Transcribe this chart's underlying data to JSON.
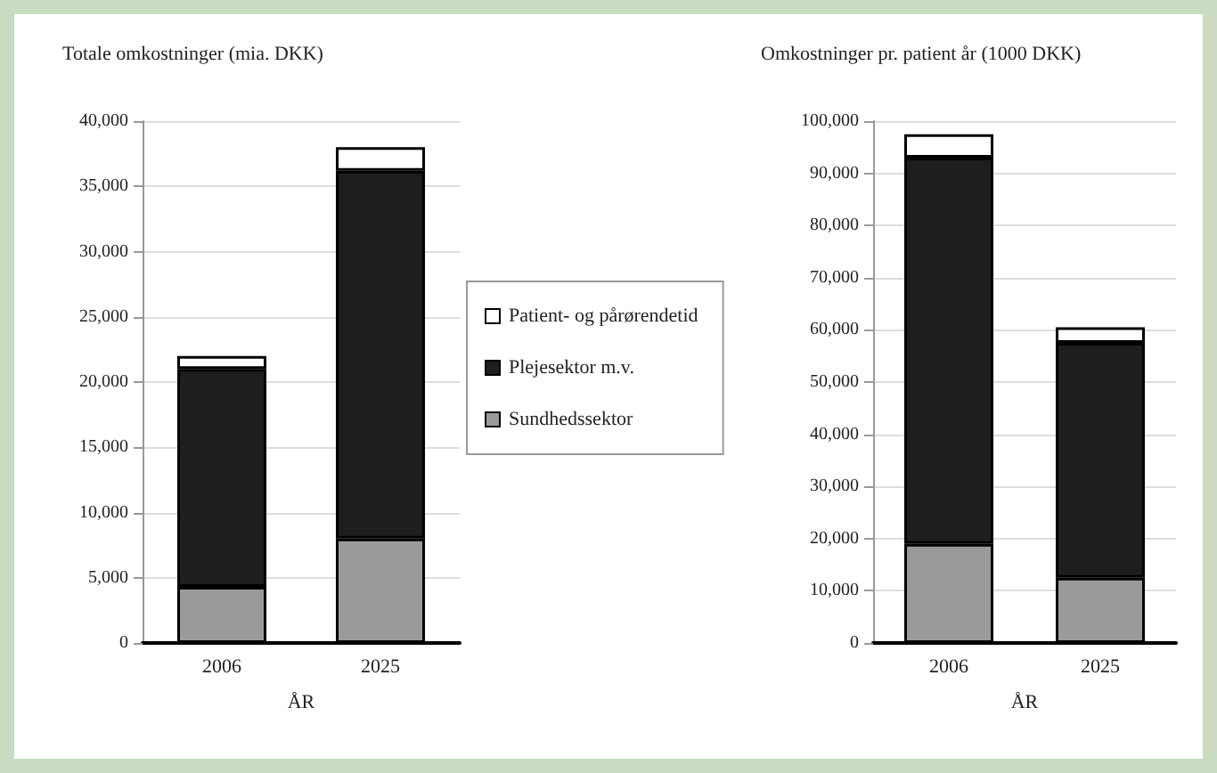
{
  "chart_data": [
    {
      "type": "bar",
      "title": "Totale omkostninger (mia. DKK)",
      "xlabel": "ÅR",
      "categories": [
        "2006",
        "2025"
      ],
      "stacked": true,
      "grid": "y",
      "legend": "right",
      "series": [
        {
          "name": "Sundhedssektor",
          "color": "#9a9a9a",
          "values": [
            4300,
            8000
          ]
        },
        {
          "name": "Plejesektor m.v.",
          "color": "#1e1e1e",
          "values": [
            16700,
            28200
          ]
        },
        {
          "name": "Patient- og pårørendetid",
          "color": "#ffffff",
          "values": [
            1000,
            1800
          ]
        }
      ],
      "ylim": [
        0,
        40000
      ],
      "yticks": [
        0,
        {
          "value": 5000,
          "label": "5,000"
        },
        {
          "value": 10000,
          "label": "10,000"
        },
        {
          "value": 15000,
          "label": "15,000"
        },
        {
          "value": 20000,
          "label": "20,000"
        },
        {
          "value": 25000,
          "label": "25,000"
        },
        {
          "value": 30000,
          "label": "30,000"
        },
        {
          "value": 35000,
          "label": "35,000"
        },
        {
          "value": 40000,
          "label": "40,000"
        }
      ]
    },
    {
      "type": "bar",
      "title": "Omkostninger pr. patient år (1000 DKK)",
      "xlabel": "ÅR",
      "categories": [
        "2006",
        "2025"
      ],
      "stacked": true,
      "grid": "y",
      "series": [
        {
          "color": "#9a9a9a",
          "values": [
            19000,
            12500
          ]
        },
        {
          "color": "#1e1e1e",
          "values": [
            74000,
            45000
          ]
        },
        {
          "color": "#ffffff",
          "values": [
            4500,
            3000
          ]
        }
      ],
      "ylim": [
        0,
        100000
      ],
      "yticks": [
        0,
        {
          "value": 10000,
          "label": "10,000"
        },
        {
          "value": 20000,
          "label": "20,000"
        },
        {
          "value": 30000,
          "label": "30,000"
        },
        {
          "value": 40000,
          "label": "40,000"
        },
        {
          "value": 50000,
          "label": "50,000"
        },
        {
          "value": 60000,
          "label": "60,000"
        },
        {
          "value": 70000,
          "label": "70,000"
        },
        {
          "value": 80000,
          "label": "80,000"
        },
        {
          "value": 90000,
          "label": "90,000"
        },
        {
          "value": 100000,
          "label": "100,000"
        }
      ]
    }
  ]
}
